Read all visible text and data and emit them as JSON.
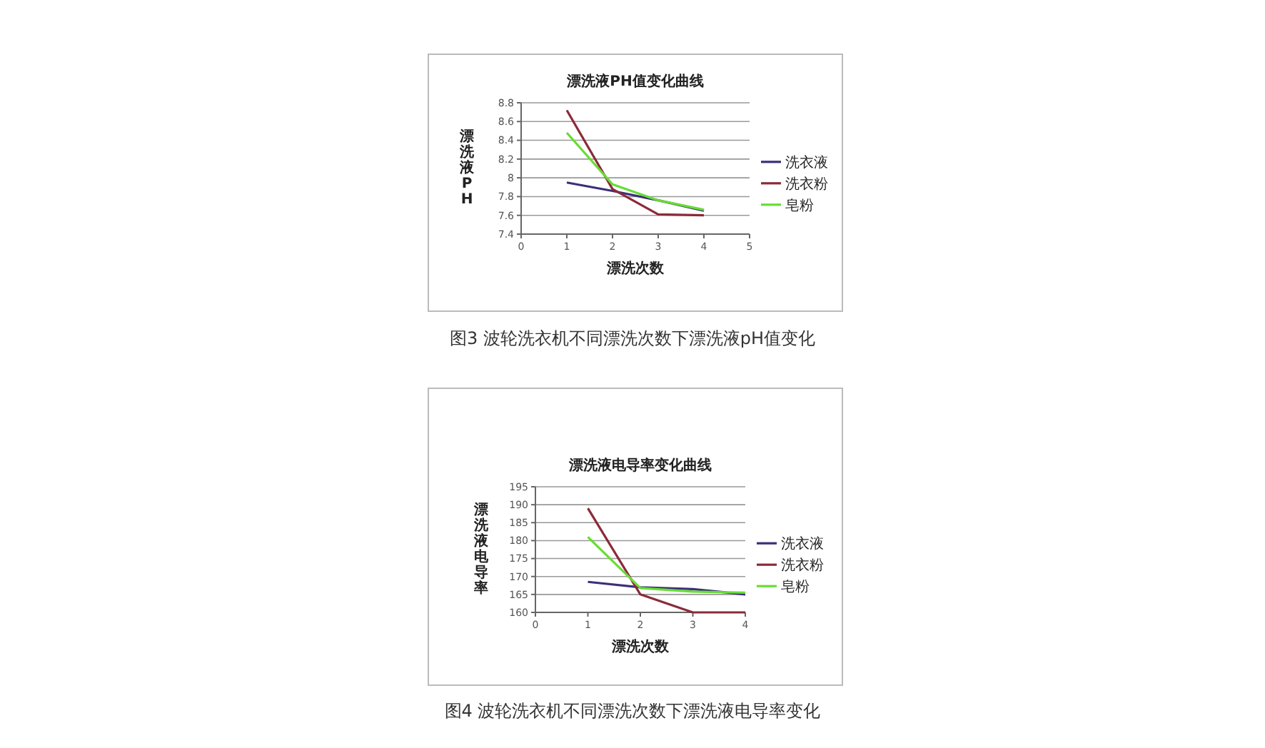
{
  "chart_data": [
    {
      "type": "line",
      "title": "漂洗液PH值变化曲线",
      "xlabel": "漂洗次数",
      "ylabel": "漂洗液PH",
      "x": [
        1,
        2,
        3,
        4
      ],
      "xlim": [
        0,
        5
      ],
      "xticks": [
        0,
        1,
        2,
        3,
        4,
        5
      ],
      "ylim": [
        7.4,
        8.8
      ],
      "yticks": [
        7.4,
        7.6,
        7.8,
        8,
        8.2,
        8.4,
        8.6,
        8.8
      ],
      "grid": "y",
      "legend": "right",
      "marker": "none",
      "annotations": [
        "图3 波轮洗衣机不同漂洗次数下漂洗液pH值变化"
      ],
      "series": [
        {
          "name": "洗衣液",
          "color": "#3b2f7a",
          "values": [
            7.95,
            7.86,
            7.76,
            7.65
          ]
        },
        {
          "name": "洗衣粉",
          "color": "#8b2a3a",
          "values": [
            8.72,
            7.88,
            7.61,
            7.6
          ]
        },
        {
          "name": "皂粉",
          "color": "#66dd33",
          "values": [
            8.48,
            7.93,
            7.76,
            7.66
          ]
        }
      ]
    },
    {
      "type": "line",
      "title": "漂洗液电导率变化曲线",
      "xlabel": "漂洗次数",
      "ylabel": "漂洗液电导率",
      "x": [
        1,
        2,
        3,
        4
      ],
      "xlim": [
        0,
        4
      ],
      "xticks": [
        0,
        1,
        2,
        3,
        4
      ],
      "ylim": [
        160,
        195
      ],
      "yticks": [
        160,
        165,
        170,
        175,
        180,
        185,
        190,
        195
      ],
      "grid": "y",
      "legend": "right",
      "marker": "none",
      "annotations": [
        "图4 波轮洗衣机不同漂洗次数下漂洗液电导率变化"
      ],
      "series": [
        {
          "name": "洗衣液",
          "color": "#3b2f7a",
          "values": [
            168.5,
            167,
            166.5,
            165
          ]
        },
        {
          "name": "洗衣粉",
          "color": "#8b2a3a",
          "values": [
            189,
            165,
            160,
            160
          ]
        },
        {
          "name": "皂粉",
          "color": "#66dd33",
          "values": [
            181,
            166.8,
            165.8,
            165.5
          ]
        }
      ]
    }
  ]
}
